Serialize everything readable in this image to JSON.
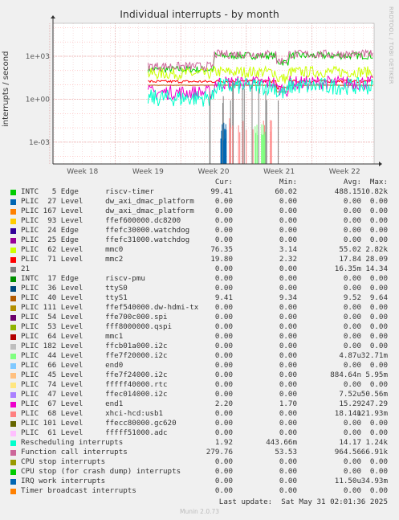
{
  "chart_data": {
    "type": "line",
    "title": "Individual interrupts - by month",
    "ylabel": "interrupts / second",
    "vendor": "RRDTOOL / TOBI OETIKER",
    "y_scale": "log",
    "y_ticks": [
      "1e-03",
      "1e+00",
      "1e+03"
    ],
    "y_tick_values": [
      0.001,
      1,
      1000
    ],
    "ylim": [
      3e-05,
      200000
    ],
    "x_ticks": [
      "Week 18",
      "Week 19",
      "Week 20",
      "Week 21",
      "Week 22"
    ],
    "x_tick_values": [
      18,
      19,
      20,
      21,
      22
    ],
    "xlim": [
      17.55,
      22.45
    ],
    "data_start": 19.0,
    "grid": true,
    "legend_header": [
      "Cur:",
      "Min:",
      "Avg:",
      "Max:"
    ],
    "series": [
      {
        "name": "INTC   5 Edge      riscv-timer",
        "color": "#00cc00",
        "cur": "99.41",
        "min": "60.02",
        "avg": "488.15",
        "max": "10.82k",
        "level": 1100,
        "early": 120,
        "jitter": 0.25
      },
      {
        "name": "PLIC  27 Level     dw_axi_dmac_platform",
        "color": "#0066b3",
        "cur": "0.00",
        "min": "0.00",
        "avg": "0.00",
        "max": "0.00"
      },
      {
        "name": "PLIC 167 Level     dw_axi_dmac_platform",
        "color": "#ff8000",
        "cur": "0.00",
        "min": "0.00",
        "avg": "0.00",
        "max": "0.00"
      },
      {
        "name": "PLIC  93 Level     ffef600000.dc8200",
        "color": "#ffcc00",
        "cur": "0.00",
        "min": "0.00",
        "avg": "0.00",
        "max": "0.00"
      },
      {
        "name": "PLIC  24 Edge      ffefc30000.watchdog",
        "color": "#330099",
        "cur": "0.00",
        "min": "0.00",
        "avg": "0.00",
        "max": "0.00"
      },
      {
        "name": "PLIC  25 Edge      ffefc31000.watchdog",
        "color": "#990099",
        "cur": "0.00",
        "min": "0.00",
        "avg": "0.00",
        "max": "0.00"
      },
      {
        "name": "PLIC  62 Level     mmc0",
        "color": "#ccff00",
        "cur": "76.35",
        "min": "3.14",
        "avg": "55.02",
        "max": "2.82k",
        "level": 80,
        "early": 60,
        "jitter": 0.4
      },
      {
        "name": "PLIC  71 Level     mmc2",
        "color": "#ff0000",
        "cur": "19.80",
        "min": "2.32",
        "avg": "17.84",
        "max": "28.09",
        "level": 18,
        "early": 17,
        "jitter": 0.1
      },
      {
        "name": "21",
        "color": "#808080",
        "cur": "0.00",
        "min": "0.00",
        "avg": "16.35m",
        "max": "14.34"
      },
      {
        "name": "INTC  17 Edge      riscv-pmu",
        "color": "#008f00",
        "cur": "0.00",
        "min": "0.00",
        "avg": "0.00",
        "max": "0.00"
      },
      {
        "name": "PLIC  36 Level     ttyS0",
        "color": "#00487d",
        "cur": "0.00",
        "min": "0.00",
        "avg": "0.00",
        "max": "0.00"
      },
      {
        "name": "PLIC  40 Level     ttyS1",
        "color": "#b35a00",
        "cur": "9.41",
        "min": "9.34",
        "avg": "9.52",
        "max": "9.64",
        "level": 9.5,
        "early": 9.5,
        "jitter": 0.01
      },
      {
        "name": "PLIC 111 Level     ffef540000.dw-hdmi-tx",
        "color": "#b38f00",
        "cur": "0.00",
        "min": "0.00",
        "avg": "0.00",
        "max": "0.00"
      },
      {
        "name": "PLIC  54 Level     ffe700c000.spi",
        "color": "#6b006b",
        "cur": "0.00",
        "min": "0.00",
        "avg": "0.00",
        "max": "0.00"
      },
      {
        "name": "PLIC  53 Level     fff8000000.qspi",
        "color": "#8fb300",
        "cur": "0.00",
        "min": "0.00",
        "avg": "0.00",
        "max": "0.00"
      },
      {
        "name": "PLIC  64 Level     mmc1",
        "color": "#b30000",
        "cur": "0.00",
        "min": "0.00",
        "avg": "0.00",
        "max": "0.00"
      },
      {
        "name": "PLIC 182 Level     ffcb01a000.i2c",
        "color": "#bebebe",
        "cur": "0.00",
        "min": "0.00",
        "avg": "0.00",
        "max": "0.00"
      },
      {
        "name": "PLIC  44 Level     ffe7f20000.i2c",
        "color": "#80ff80",
        "cur": "0.00",
        "min": "0.00",
        "avg": "4.87u",
        "max": "32.71m"
      },
      {
        "name": "PLIC  66 Level     end0",
        "color": "#80c9ff",
        "cur": "0.00",
        "min": "0.00",
        "avg": "0.00",
        "max": "0.00"
      },
      {
        "name": "PLIC  45 Level     ffe7f24000.i2c",
        "color": "#ffc080",
        "cur": "0.00",
        "min": "0.00",
        "avg": "884.64n",
        "max": "5.95m"
      },
      {
        "name": "PLIC  74 Level     fffff40000.rtc",
        "color": "#ffe680",
        "cur": "0.00",
        "min": "0.00",
        "avg": "0.00",
        "max": "0.00"
      },
      {
        "name": "PLIC  47 Level     ffec014000.i2c",
        "color": "#aa80ff",
        "cur": "0.00",
        "min": "0.00",
        "avg": "7.52u",
        "max": "50.56m"
      },
      {
        "name": "PLIC  67 Level     end1",
        "color": "#ee00cc",
        "cur": "2.20",
        "min": "1.70",
        "avg": "15.29",
        "max": "247.29",
        "level": 14,
        "early": 3,
        "jitter": 0.5
      },
      {
        "name": "PLIC  68 Level     xhci-hcd:usb1",
        "color": "#ff8080",
        "cur": "0.00",
        "min": "0.00",
        "avg": "18.14u",
        "max": "121.93m"
      },
      {
        "name": "PLIC 101 Level     ffecc80000.gc620",
        "color": "#666600",
        "cur": "0.00",
        "min": "0.00",
        "avg": "0.00",
        "max": "0.00"
      },
      {
        "name": "PLIC  61 Level     fffff51000.adc",
        "color": "#ffbfff",
        "cur": "0.00",
        "min": "0.00",
        "avg": "0.00",
        "max": "0.00"
      },
      {
        "name": "Rescheduling interrupts",
        "color": "#00ffcc",
        "cur": "1.92",
        "min": "443.66m",
        "avg": "14.17",
        "max": "1.24k",
        "level": 8,
        "early": 1.2,
        "jitter": 0.6
      },
      {
        "name": "Function call interrupts",
        "color": "#cc6699",
        "cur": "279.76",
        "min": "53.53",
        "avg": "964.56",
        "max": "66.91k",
        "level": 1400,
        "early": 200,
        "jitter": 0.3
      },
      {
        "name": "CPU stop interrupts",
        "color": "#999900",
        "cur": "0.00",
        "min": "0.00",
        "avg": "0.00",
        "max": "0.00"
      },
      {
        "name": "CPU stop (for crash dump) interrupts",
        "color": "#00cc00",
        "cur": "0.00",
        "min": "0.00",
        "avg": "0.00",
        "max": "0.00"
      },
      {
        "name": "IRQ work interrupts",
        "color": "#0066b3",
        "cur": "0.00",
        "min": "0.00",
        "avg": "11.50u",
        "max": "34.93m"
      },
      {
        "name": "Timer broadcast interrupts",
        "color": "#ff8000",
        "cur": "0.00",
        "min": "0.00",
        "avg": "0.00",
        "max": "0.00"
      }
    ]
  },
  "last_update": "Last update:  Sat May 31 02:01:36 2025",
  "footer": "Munin 2.0.73"
}
